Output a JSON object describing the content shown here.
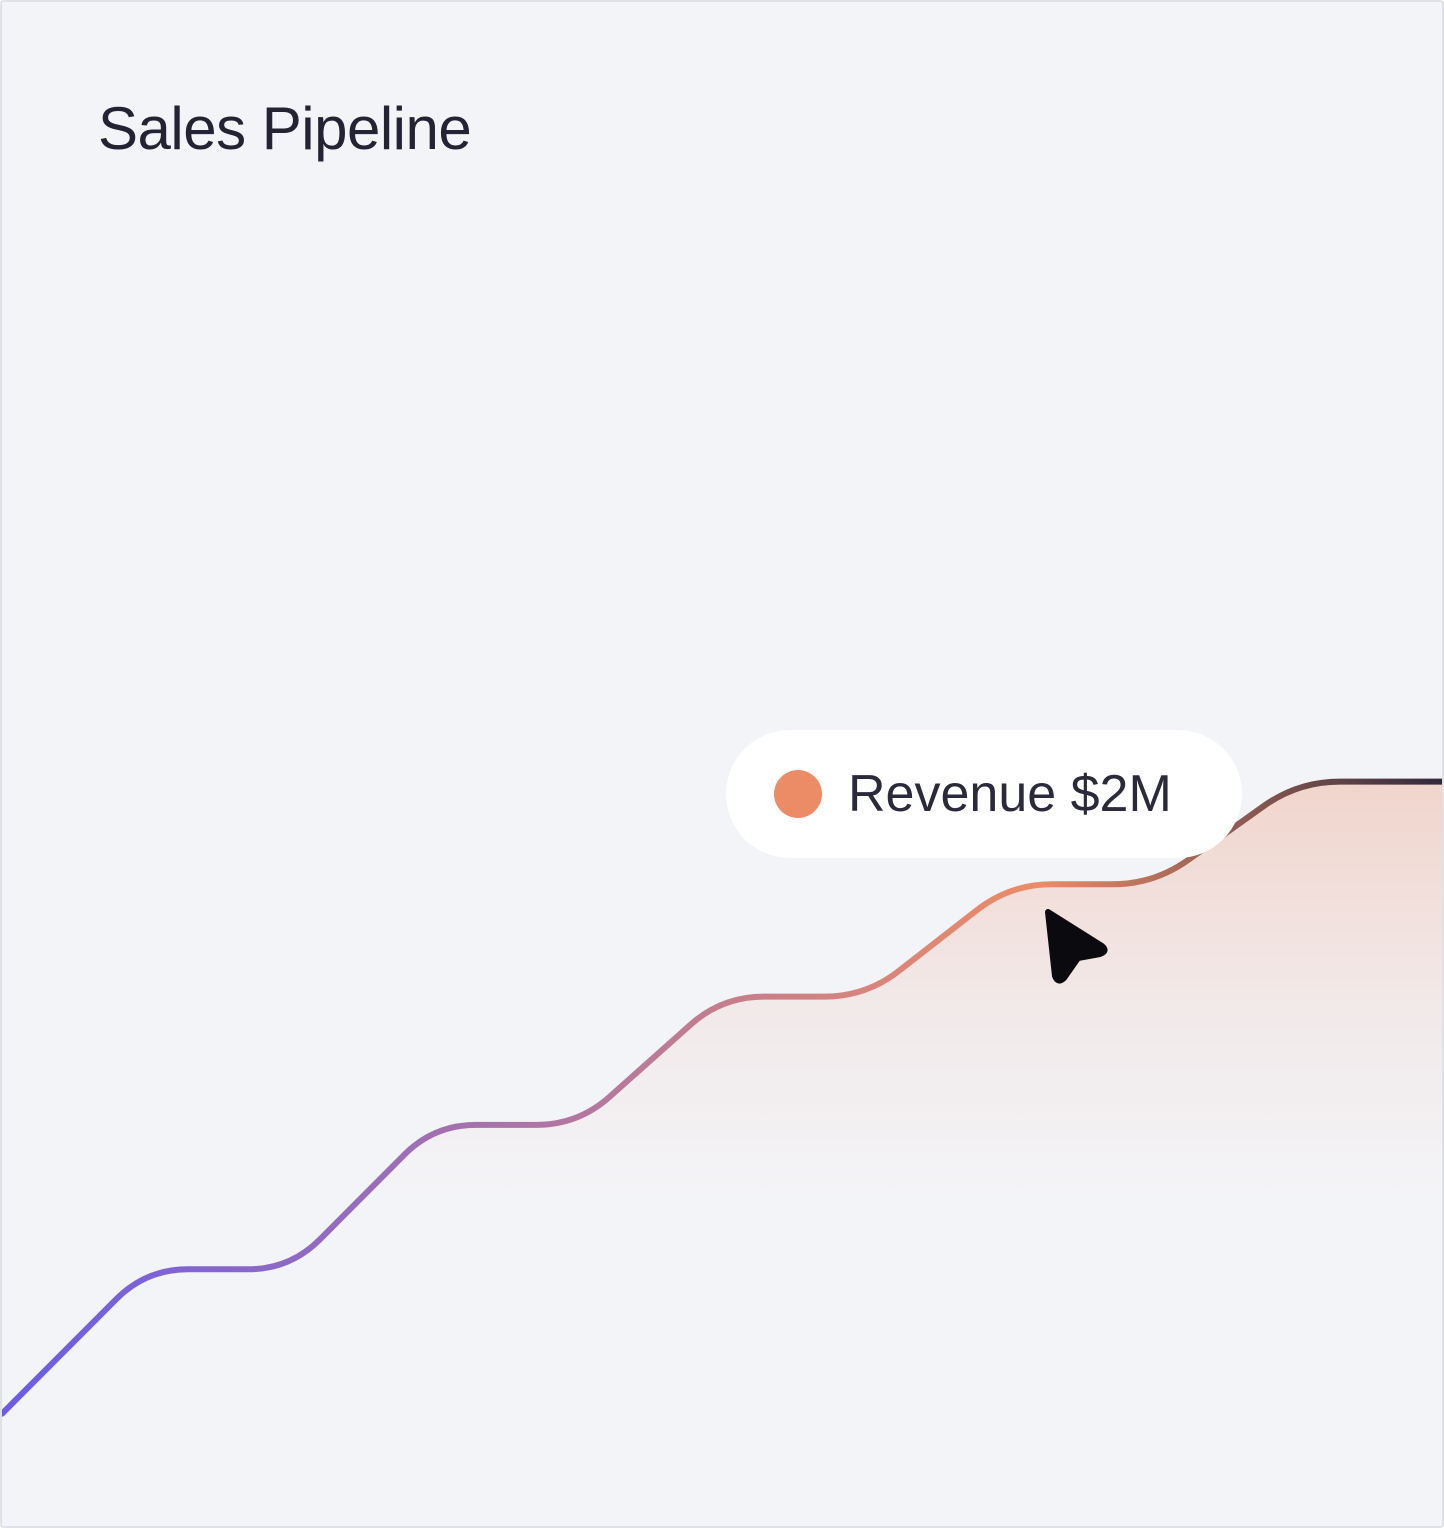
{
  "title": "Sales Pipeline",
  "tooltip": {
    "series_label": "Revenue",
    "value_label": "$2M",
    "dot_color": "#ec8c67"
  },
  "icons": {
    "pointer": "mouse-pointer-icon"
  },
  "colors": {
    "line_start": "#6b5ce7",
    "line_mid": "#ec8c67",
    "line_end": "#2f2a3c",
    "area_fill": "#ec8c67",
    "background": "#f3f4f8"
  },
  "chart_data": {
    "type": "area",
    "series": [
      {
        "name": "Revenue",
        "values": [
          0.35,
          0.8,
          0.8,
          1.25,
          1.25,
          1.65,
          1.65,
          2.0,
          2.0,
          2.32,
          2.32
        ]
      }
    ],
    "ylim": [
      0,
      4.75
    ],
    "grid": false,
    "xlabel": "",
    "ylabel": "",
    "highlighted_index": 7
  }
}
